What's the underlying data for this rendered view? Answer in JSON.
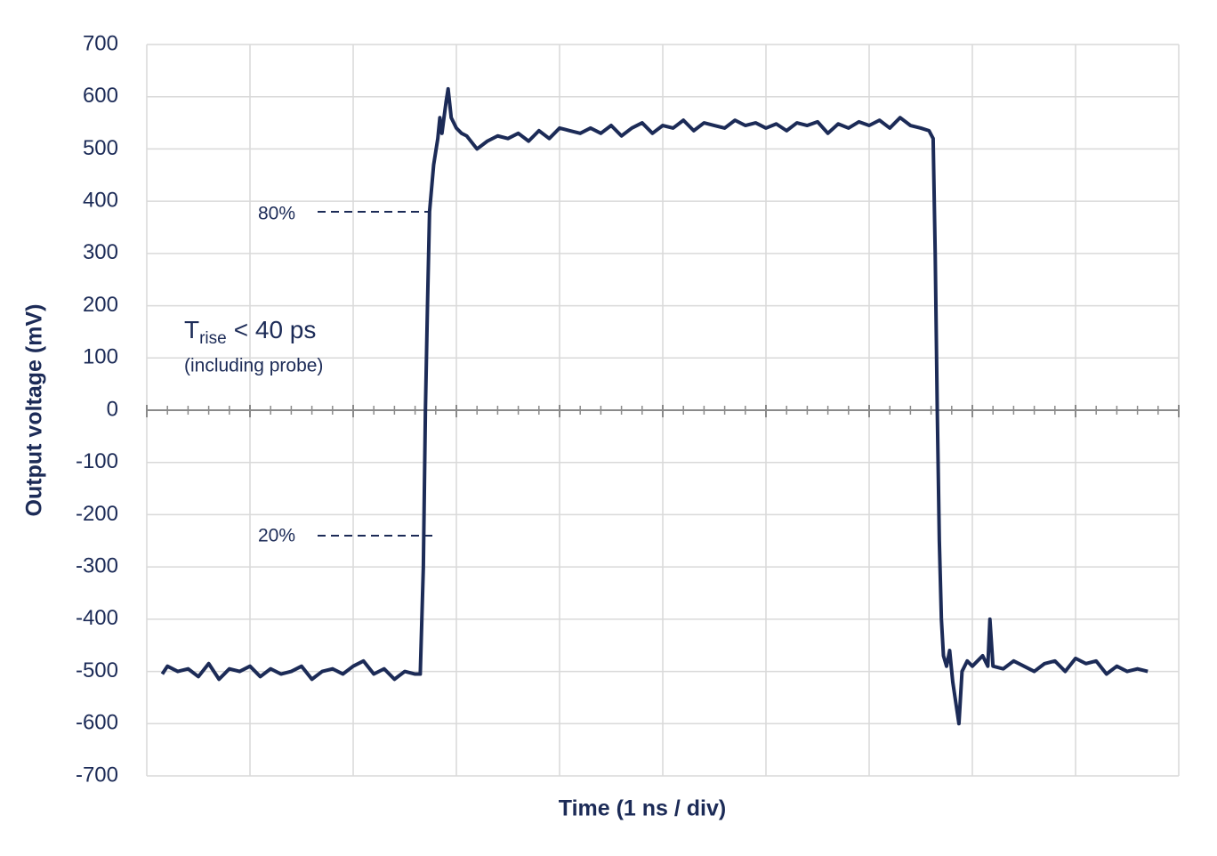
{
  "chart_data": {
    "type": "line",
    "x_title": "Time (1 ns / div)",
    "y_title": "Output voltage (mV)",
    "annotations": {
      "level_high": "80%",
      "level_low": "20%",
      "rise_symbol": "T",
      "rise_subscript": "rise",
      "rise_text": "< 40 ps",
      "rise_note": "(including probe)"
    },
    "x": [
      0.15,
      0.2,
      0.3,
      0.4,
      0.5,
      0.6,
      0.7,
      0.8,
      0.9,
      1.0,
      1.1,
      1.2,
      1.3,
      1.4,
      1.5,
      1.6,
      1.7,
      1.8,
      1.9,
      2.0,
      2.1,
      2.2,
      2.3,
      2.4,
      2.5,
      2.6,
      2.65,
      2.68,
      2.7,
      2.72,
      2.74,
      2.78,
      2.82,
      2.84,
      2.86,
      2.9,
      2.92,
      2.95,
      3.0,
      3.05,
      3.1,
      3.2,
      3.3,
      3.4,
      3.5,
      3.6,
      3.7,
      3.8,
      3.9,
      4.0,
      4.1,
      4.2,
      4.3,
      4.4,
      4.5,
      4.6,
      4.7,
      4.8,
      4.9,
      5.0,
      5.1,
      5.2,
      5.3,
      5.4,
      5.5,
      5.6,
      5.7,
      5.8,
      5.9,
      6.0,
      6.1,
      6.2,
      6.3,
      6.4,
      6.5,
      6.6,
      6.7,
      6.8,
      6.9,
      7.0,
      7.1,
      7.2,
      7.3,
      7.4,
      7.5,
      7.58,
      7.62,
      7.64,
      7.66,
      7.68,
      7.7,
      7.72,
      7.75,
      7.78,
      7.81,
      7.84,
      7.87,
      7.9,
      7.95,
      8.0,
      8.05,
      8.1,
      8.15,
      8.17,
      8.2,
      8.3,
      8.4,
      8.5,
      8.6,
      8.7,
      8.8,
      8.9,
      9.0,
      9.1,
      9.2,
      9.3,
      9.4,
      9.5,
      9.6,
      9.7
    ],
    "series": [
      {
        "name": "Output voltage",
        "color": "#1c2b57",
        "values": [
          -505,
          -490,
          -500,
          -495,
          -510,
          -485,
          -515,
          -495,
          -500,
          -490,
          -510,
          -495,
          -505,
          -500,
          -490,
          -515,
          -500,
          -495,
          -505,
          -490,
          -480,
          -505,
          -495,
          -515,
          -500,
          -505,
          -505,
          -300,
          0,
          200,
          380,
          470,
          520,
          560,
          530,
          590,
          615,
          560,
          540,
          530,
          525,
          500,
          515,
          525,
          520,
          530,
          515,
          535,
          520,
          540,
          535,
          530,
          540,
          530,
          545,
          525,
          540,
          550,
          530,
          545,
          540,
          555,
          535,
          550,
          545,
          540,
          555,
          545,
          550,
          540,
          548,
          535,
          550,
          545,
          552,
          530,
          548,
          540,
          552,
          545,
          555,
          540,
          560,
          545,
          540,
          535,
          520,
          300,
          0,
          -250,
          -400,
          -470,
          -490,
          -460,
          -520,
          -560,
          -600,
          -500,
          -480,
          -490,
          -480,
          -470,
          -490,
          -400,
          -490,
          -495,
          -480,
          -490,
          -500,
          -485,
          -480,
          -500,
          -475,
          -485,
          -480,
          -505,
          -490,
          -500,
          -495,
          -500
        ]
      }
    ],
    "xlim": [
      0,
      10
    ],
    "xticks": [
      0,
      1,
      2,
      3,
      4,
      5,
      6,
      7,
      8,
      9,
      10
    ],
    "ylim": [
      -700,
      700
    ],
    "yticks": [
      -700,
      -600,
      -500,
      -400,
      -300,
      -200,
      -100,
      0,
      100,
      200,
      300,
      400,
      500,
      600,
      700
    ],
    "grid": true
  }
}
